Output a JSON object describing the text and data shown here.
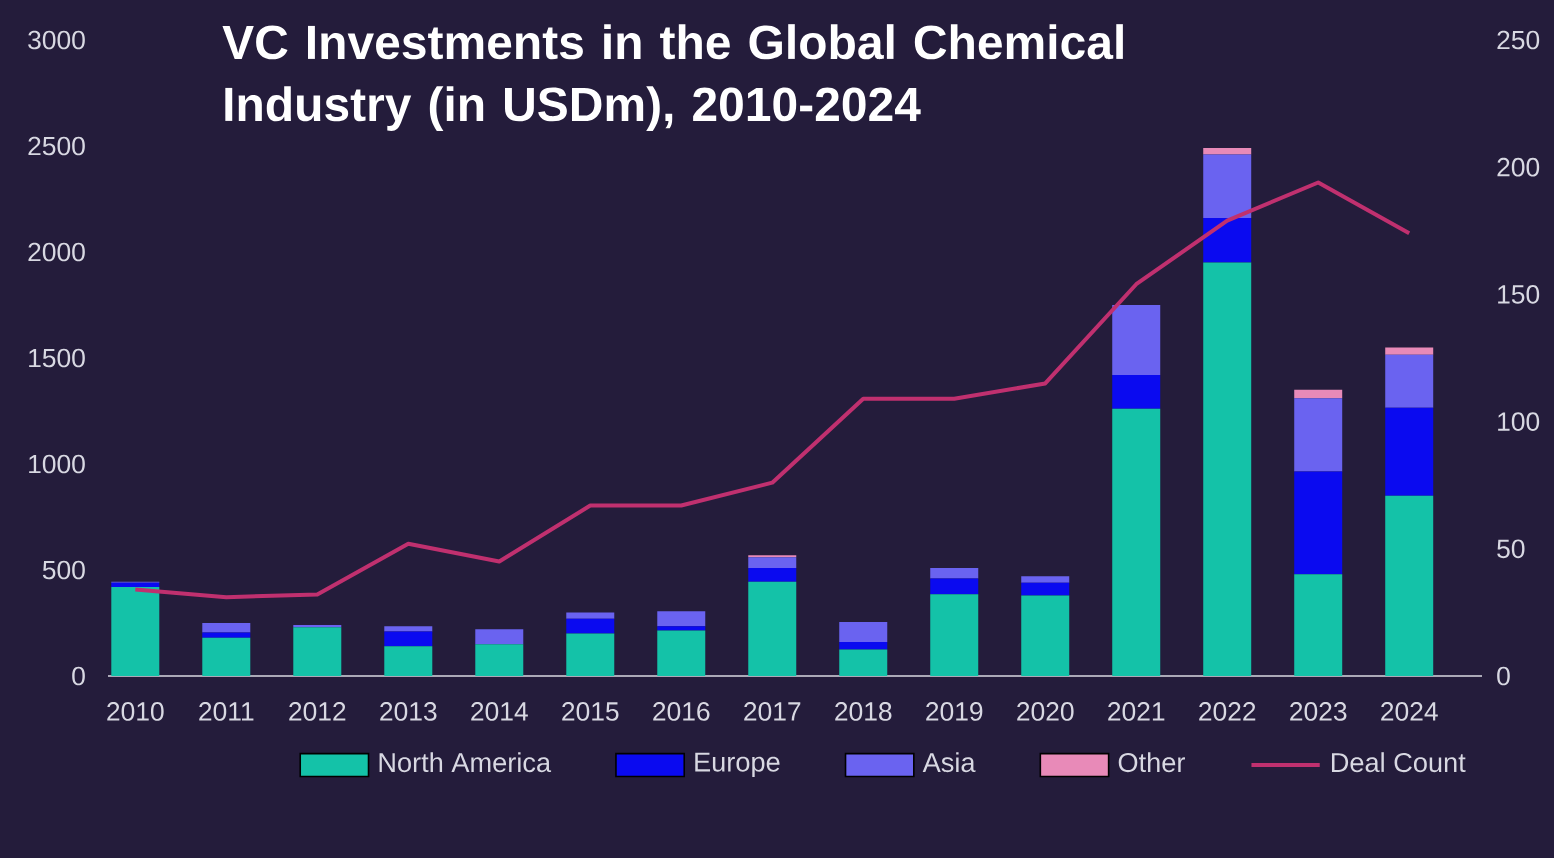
{
  "chart_data": {
    "type": "bar",
    "title": "VC Investments in the Global Chemical Industry (in USDm), 2010-2024",
    "categories": [
      "2010",
      "2011",
      "2012",
      "2013",
      "2014",
      "2015",
      "2016",
      "2017",
      "2018",
      "2019",
      "2020",
      "2021",
      "2022",
      "2023",
      "2024"
    ],
    "stacked": true,
    "legend": "bottom",
    "ylim": [
      0,
      3000
    ],
    "yticks": [
      0,
      500,
      1000,
      1500,
      2000,
      2500,
      3000
    ],
    "y2lim": [
      0,
      250
    ],
    "y2ticks": [
      0,
      50,
      100,
      150,
      200,
      250
    ],
    "series": [
      {
        "name": "North America",
        "color": "#14c2a8",
        "values": [
          420,
          180,
          230,
          140,
          150,
          200,
          215,
          445,
          125,
          385,
          380,
          1260,
          1950,
          480,
          850
        ]
      },
      {
        "name": "Europe",
        "color": "#0a0af0",
        "values": [
          20,
          25,
          0,
          70,
          0,
          70,
          20,
          65,
          35,
          75,
          60,
          160,
          210,
          485,
          415
        ]
      },
      {
        "name": "Asia",
        "color": "#6a63f0",
        "values": [
          5,
          45,
          10,
          25,
          70,
          30,
          70,
          50,
          95,
          50,
          30,
          330,
          300,
          345,
          250
        ]
      },
      {
        "name": "Other",
        "color": "#e88ab8",
        "values": [
          0,
          0,
          0,
          0,
          0,
          0,
          0,
          10,
          0,
          0,
          0,
          0,
          30,
          40,
          35
        ]
      },
      {
        "name": "Deal Count",
        "type": "line",
        "axis": "y2",
        "color": "#c0306f",
        "values": [
          34,
          31,
          32,
          52,
          45,
          67,
          67,
          76,
          109,
          109,
          115,
          154,
          179,
          194,
          174
        ]
      }
    ]
  }
}
